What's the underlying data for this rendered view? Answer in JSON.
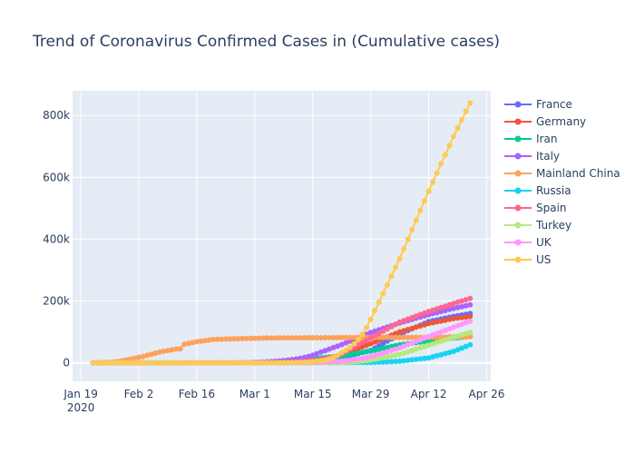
{
  "chart_data": {
    "type": "line",
    "title": "Trend of Coronavirus Confirmed Cases in  (Cumulative cases)",
    "xlabel": "",
    "ylabel": "",
    "x_tick_labels": [
      "Jan 19\n2020",
      "Feb 2",
      "Feb 16",
      "Mar 1",
      "Mar 15",
      "Mar 29",
      "Apr 12",
      "Apr 26"
    ],
    "x_ticks": [
      "2020-01-19",
      "2020-02-02",
      "2020-02-16",
      "2020-03-01",
      "2020-03-15",
      "2020-03-29",
      "2020-04-12",
      "2020-04-26"
    ],
    "xlim": [
      "2020-01-17",
      "2020-04-27"
    ],
    "y_ticks": [
      0,
      200000,
      400000,
      600000,
      800000
    ],
    "y_tick_labels": [
      "0",
      "200k",
      "400k",
      "600k",
      "800k"
    ],
    "ylim": [
      -60000,
      880000
    ],
    "grid": true,
    "legend_position": "right",
    "x_start": "2020-01-22",
    "x_end": "2020-04-22",
    "series": [
      {
        "name": "France",
        "color": "#636efa",
        "knots": [
          [
            "2020-01-22",
            0
          ],
          [
            "2020-03-01",
            130
          ],
          [
            "2020-03-15",
            5400
          ],
          [
            "2020-03-22",
            16000
          ],
          [
            "2020-03-29",
            40000
          ],
          [
            "2020-04-05",
            93000
          ],
          [
            "2020-04-12",
            133000
          ],
          [
            "2020-04-18",
            150000
          ],
          [
            "2020-04-22",
            159000
          ]
        ]
      },
      {
        "name": "Germany",
        "color": "#ef553b",
        "knots": [
          [
            "2020-01-22",
            0
          ],
          [
            "2020-03-01",
            130
          ],
          [
            "2020-03-15",
            5800
          ],
          [
            "2020-03-22",
            24800
          ],
          [
            "2020-03-29",
            62000
          ],
          [
            "2020-04-05",
            100000
          ],
          [
            "2020-04-12",
            127000
          ],
          [
            "2020-04-18",
            143000
          ],
          [
            "2020-04-22",
            150000
          ]
        ]
      },
      {
        "name": "Iran",
        "color": "#00cc96",
        "knots": [
          [
            "2020-01-22",
            0
          ],
          [
            "2020-02-19",
            2
          ],
          [
            "2020-03-01",
            980
          ],
          [
            "2020-03-15",
            14000
          ],
          [
            "2020-03-22",
            21600
          ],
          [
            "2020-03-29",
            38000
          ],
          [
            "2020-04-05",
            58000
          ],
          [
            "2020-04-12",
            71000
          ],
          [
            "2020-04-18",
            80000
          ],
          [
            "2020-04-22",
            85000
          ]
        ]
      },
      {
        "name": "Italy",
        "color": "#ab63fa",
        "knots": [
          [
            "2020-01-22",
            0
          ],
          [
            "2020-02-21",
            20
          ],
          [
            "2020-03-01",
            1700
          ],
          [
            "2020-03-08",
            7400
          ],
          [
            "2020-03-15",
            24700
          ],
          [
            "2020-03-22",
            59000
          ],
          [
            "2020-03-29",
            97700
          ],
          [
            "2020-04-05",
            128900
          ],
          [
            "2020-04-12",
            156000
          ],
          [
            "2020-04-18",
            175900
          ],
          [
            "2020-04-22",
            187300
          ]
        ]
      },
      {
        "name": "Mainland China",
        "color": "#ffa15a",
        "knots": [
          [
            "2020-01-22",
            550
          ],
          [
            "2020-01-26",
            2100
          ],
          [
            "2020-01-30",
            9700
          ],
          [
            "2020-02-03",
            20400
          ],
          [
            "2020-02-07",
            34600
          ],
          [
            "2020-02-11",
            44700
          ],
          [
            "2020-02-12",
            45200
          ],
          [
            "2020-02-13",
            60000
          ],
          [
            "2020-02-16",
            68500
          ],
          [
            "2020-02-20",
            75500
          ],
          [
            "2020-02-27",
            78500
          ],
          [
            "2020-03-05",
            80500
          ],
          [
            "2020-03-15",
            81000
          ],
          [
            "2020-03-29",
            82000
          ],
          [
            "2020-04-12",
            82500
          ],
          [
            "2020-04-16",
            82700
          ],
          [
            "2020-04-17",
            84000
          ],
          [
            "2020-04-22",
            84100
          ]
        ]
      },
      {
        "name": "Russia",
        "color": "#19d3f3",
        "knots": [
          [
            "2020-01-22",
            0
          ],
          [
            "2020-03-15",
            60
          ],
          [
            "2020-03-22",
            370
          ],
          [
            "2020-03-29",
            1500
          ],
          [
            "2020-04-05",
            5400
          ],
          [
            "2020-04-12",
            15800
          ],
          [
            "2020-04-18",
            36800
          ],
          [
            "2020-04-22",
            58000
          ]
        ]
      },
      {
        "name": "Spain",
        "color": "#ff6692",
        "knots": [
          [
            "2020-01-22",
            0
          ],
          [
            "2020-03-01",
            80
          ],
          [
            "2020-03-08",
            670
          ],
          [
            "2020-03-15",
            7800
          ],
          [
            "2020-03-22",
            28600
          ],
          [
            "2020-03-29",
            80000
          ],
          [
            "2020-04-05",
            131600
          ],
          [
            "2020-04-12",
            166000
          ],
          [
            "2020-04-18",
            191700
          ],
          [
            "2020-04-22",
            208400
          ]
        ]
      },
      {
        "name": "Turkey",
        "color": "#b6e880",
        "knots": [
          [
            "2020-01-22",
            0
          ],
          [
            "2020-03-11",
            1
          ],
          [
            "2020-03-15",
            50
          ],
          [
            "2020-03-22",
            1200
          ],
          [
            "2020-03-29",
            9200
          ],
          [
            "2020-04-05",
            27000
          ],
          [
            "2020-04-12",
            57000
          ],
          [
            "2020-04-18",
            82300
          ],
          [
            "2020-04-22",
            98700
          ]
        ]
      },
      {
        "name": "UK",
        "color": "#ff97ff",
        "knots": [
          [
            "2020-01-22",
            0
          ],
          [
            "2020-03-01",
            40
          ],
          [
            "2020-03-15",
            1400
          ],
          [
            "2020-03-22",
            5700
          ],
          [
            "2020-03-29",
            19800
          ],
          [
            "2020-04-05",
            48400
          ],
          [
            "2020-04-12",
            85200
          ],
          [
            "2020-04-18",
            115000
          ],
          [
            "2020-04-22",
            134600
          ]
        ]
      },
      {
        "name": "US",
        "color": "#fecb52",
        "knots": [
          [
            "2020-01-22",
            1
          ],
          [
            "2020-03-01",
            75
          ],
          [
            "2020-03-08",
            550
          ],
          [
            "2020-03-15",
            3500
          ],
          [
            "2020-03-22",
            33000
          ],
          [
            "2020-03-29",
            140000
          ],
          [
            "2020-04-05",
            337000
          ],
          [
            "2020-04-12",
            555000
          ],
          [
            "2020-04-18",
            732000
          ],
          [
            "2020-04-22",
            840000
          ]
        ]
      }
    ]
  }
}
